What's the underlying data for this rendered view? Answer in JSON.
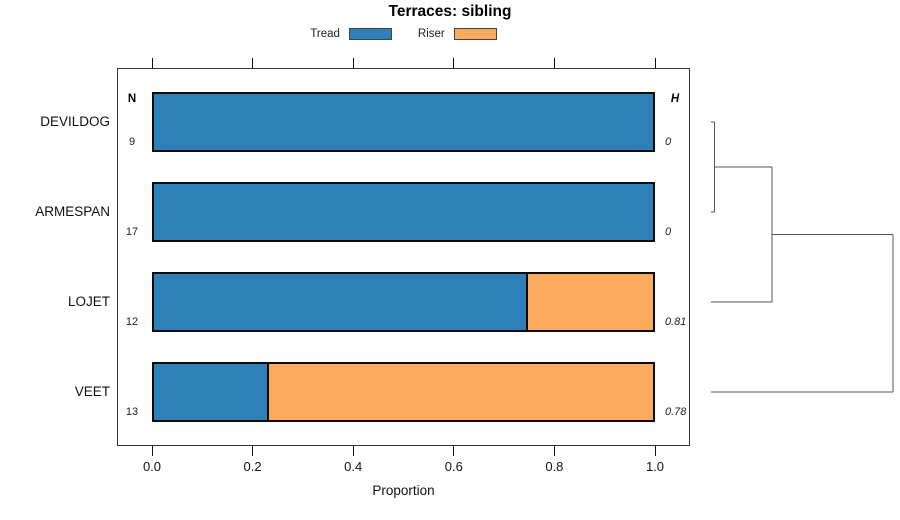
{
  "chart_data": {
    "type": "bar",
    "variant": "stacked-horizontal-terrace-with-dendrogram",
    "title": "Terraces: sibling",
    "categories": [
      "DEVILDOG",
      "ARMESPAN",
      "LOJET",
      "VEET"
    ],
    "series": [
      {
        "name": "Tread",
        "color": "#2e80b9",
        "values": [
          1.0,
          1.0,
          0.75,
          0.23
        ]
      },
      {
        "name": "Riser",
        "color": "#fcab5e",
        "values": [
          0.0,
          0.0,
          0.25,
          0.77
        ]
      }
    ],
    "legend": {
      "entries": [
        "Tread",
        "Riser"
      ],
      "position": "top-center"
    },
    "xlabel": "Proportion",
    "xlim": [
      0.0,
      1.0
    ],
    "xticks": [
      {
        "value": 0.0,
        "label": "0.0"
      },
      {
        "value": 0.2,
        "label": "0.2"
      },
      {
        "value": 0.4,
        "label": "0.4"
      },
      {
        "value": 0.6,
        "label": "0.6"
      },
      {
        "value": 0.8,
        "label": "0.8"
      },
      {
        "value": 1.0,
        "label": "1.0"
      }
    ],
    "grid": false,
    "columns": {
      "n": {
        "header": "N",
        "values": [
          "9",
          "17",
          "12",
          "13"
        ]
      },
      "h": {
        "header": "H",
        "values": [
          "0",
          "0",
          "0.81",
          "0.78"
        ]
      }
    },
    "dendrogram": {
      "leaf_order": [
        "DEVILDOG",
        "ARMESPAN",
        "LOJET",
        "VEET"
      ],
      "merge_pairs": [
        [
          0,
          1
        ],
        [
          4,
          2
        ],
        [
          5,
          3
        ]
      ],
      "heights_norm": [
        0.02,
        0.335,
        1.0
      ],
      "line_color": "#555555"
    }
  }
}
